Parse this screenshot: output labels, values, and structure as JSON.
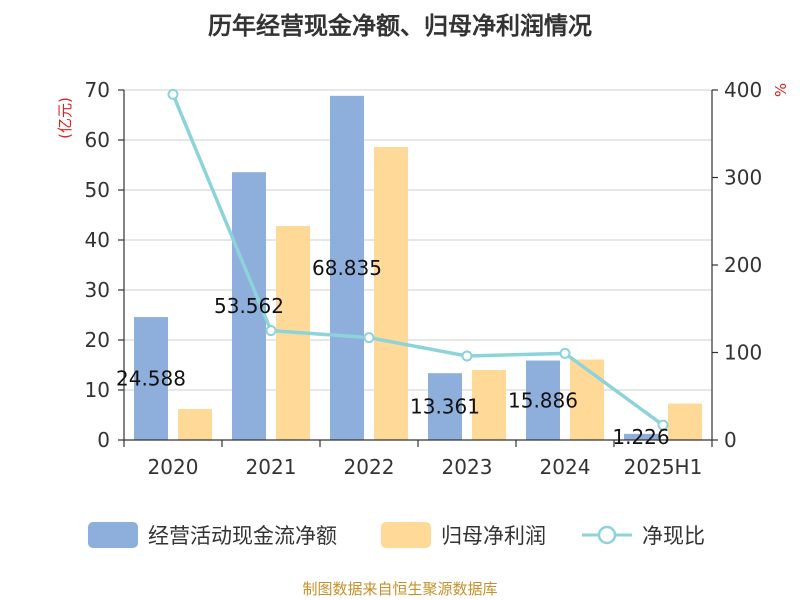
{
  "chart_data": {
    "type": "bar",
    "title": "历年经营现金净额、归母净利润情况",
    "categories": [
      "2020",
      "2021",
      "2022",
      "2023",
      "2024",
      "2025H1"
    ],
    "series": [
      {
        "name": "经营活动现金流净额",
        "type": "bar",
        "axis": "left",
        "color": "#8eaedb",
        "values": [
          24.588,
          53.562,
          68.835,
          13.361,
          15.886,
          1.226
        ]
      },
      {
        "name": "归母净利润",
        "type": "bar",
        "axis": "left",
        "color": "#fed998",
        "values": [
          6.2,
          42.8,
          58.6,
          14.0,
          16.1,
          7.3
        ]
      },
      {
        "name": "净现比",
        "type": "line",
        "axis": "right",
        "color": "#8dd3da",
        "values": [
          395,
          125,
          117,
          96,
          99,
          17
        ]
      }
    ],
    "data_labels": [
      "24.588",
      "53.562",
      "68.835",
      "13.361",
      "15.886",
      "1.226"
    ],
    "left_axis": {
      "unit_label": "(亿元)",
      "min": 0,
      "max": 70,
      "ticks": [
        0,
        10,
        20,
        30,
        40,
        50,
        60,
        70
      ]
    },
    "right_axis": {
      "unit_label": "%",
      "min": 0,
      "max": 400,
      "ticks": [
        0,
        100,
        200,
        300,
        400
      ]
    },
    "grid": true,
    "legend_position": "bottom"
  },
  "source_note": "制图数据来自恒生聚源数据库"
}
